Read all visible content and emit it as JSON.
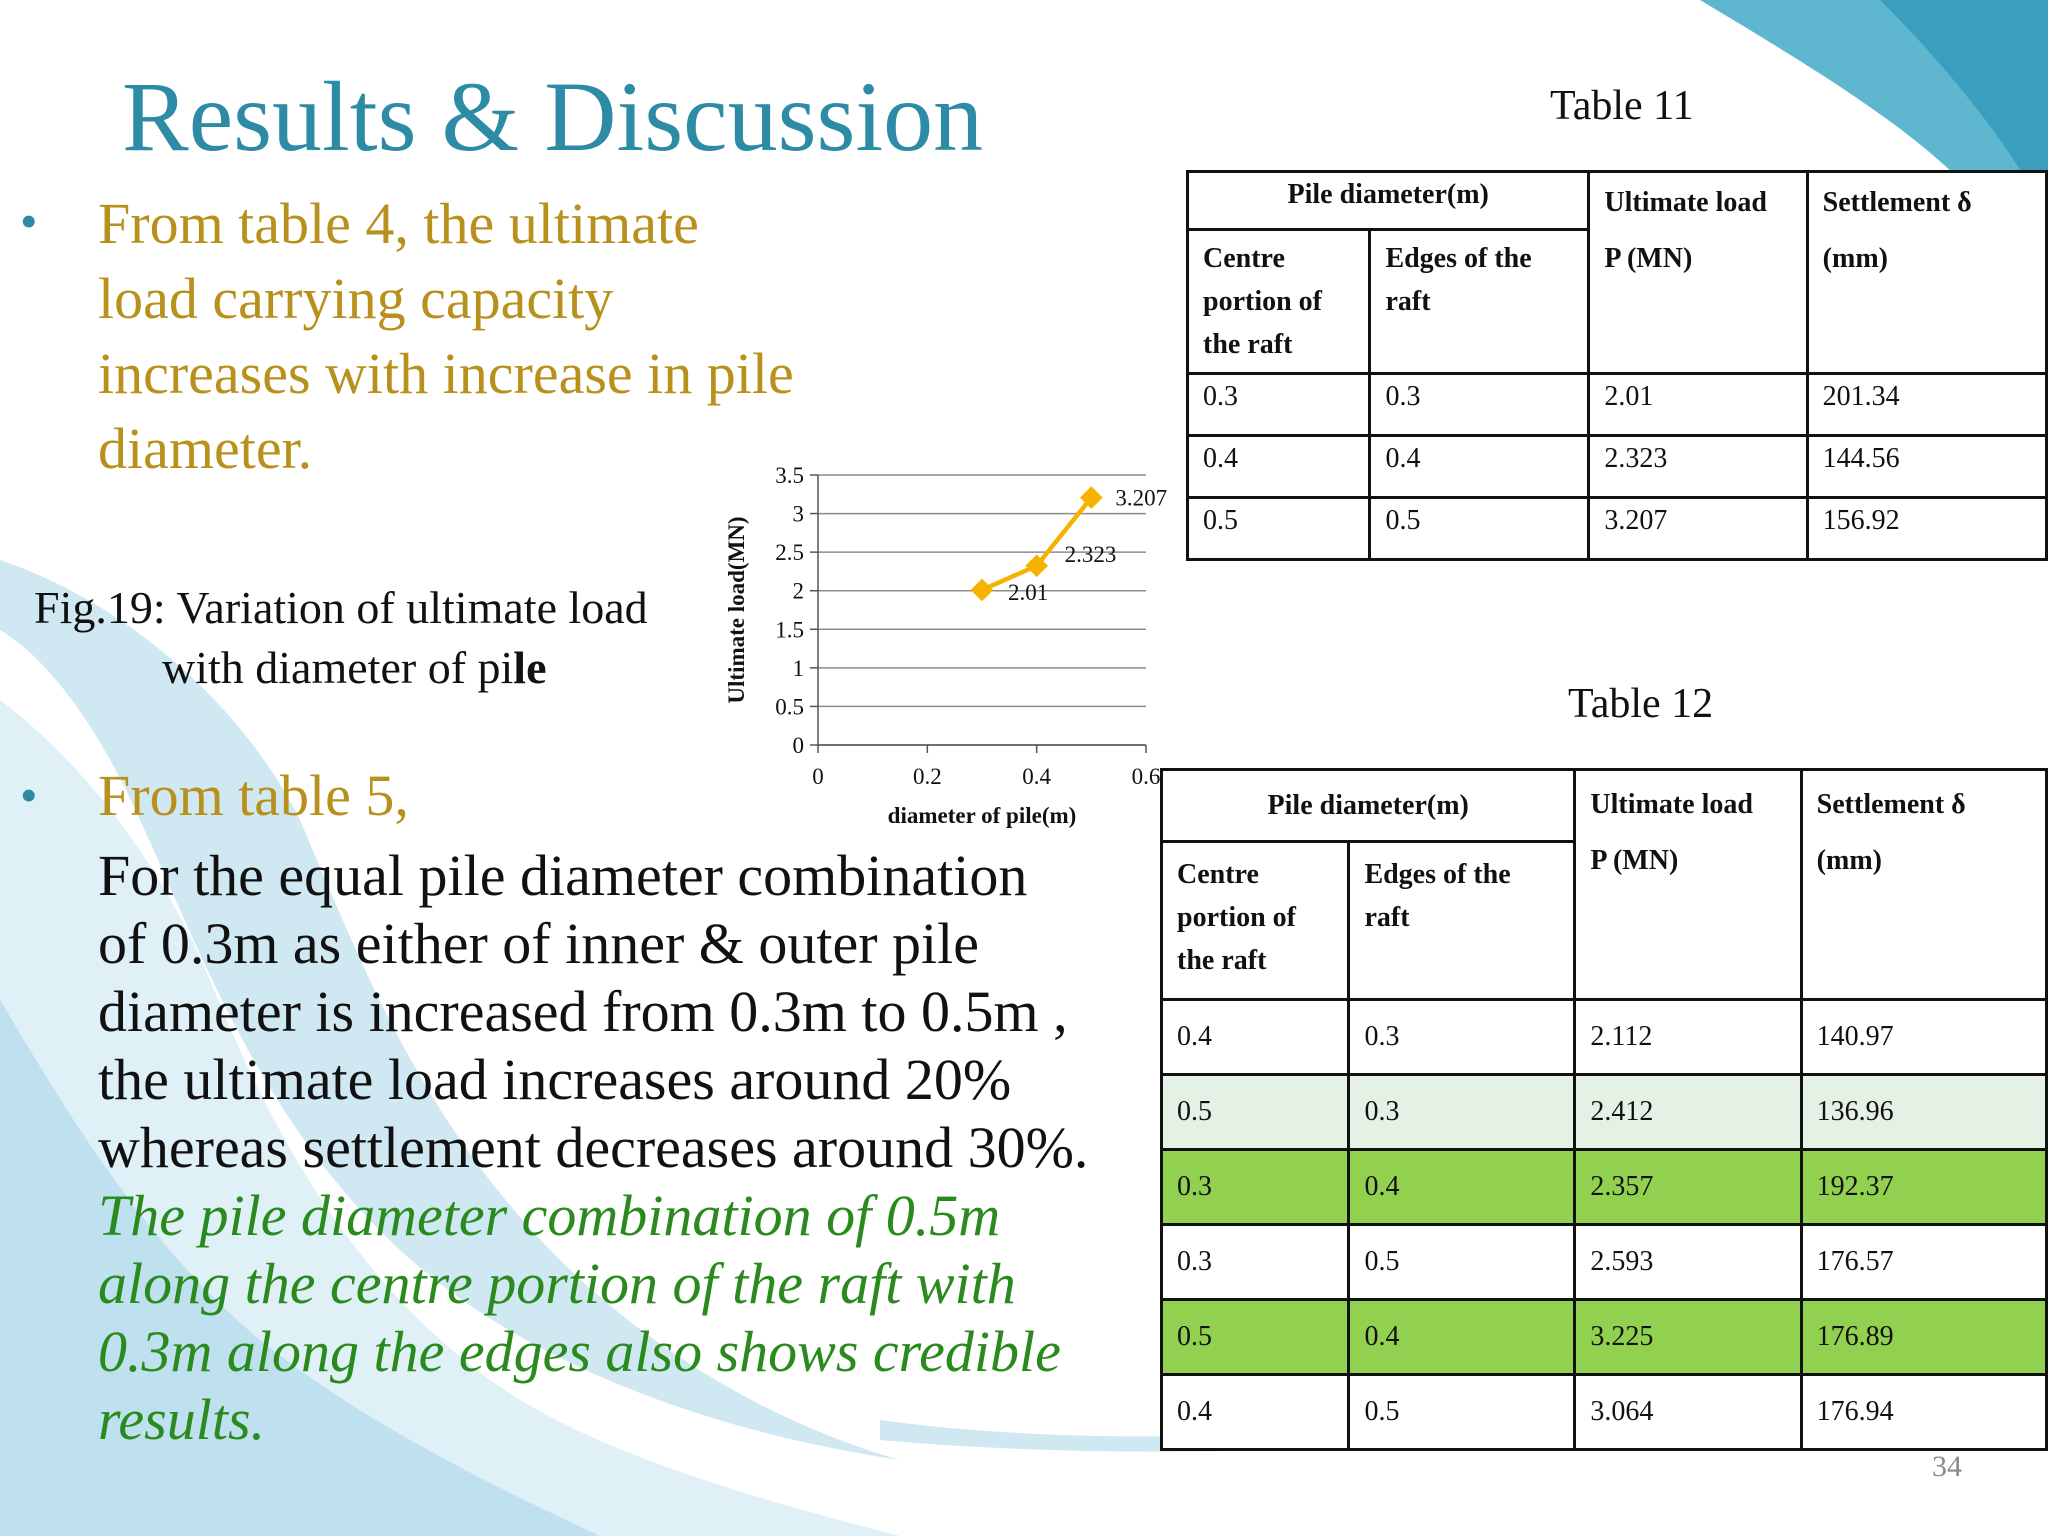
{
  "slide": {
    "title": "Results & Discussion",
    "page_number": "34",
    "colors": {
      "title": "#2e8ba5",
      "gold_text": "#b8901c",
      "green_text": "#2a8a1e",
      "row_highlight": "#92d050",
      "row_light": "#e4f1e4"
    }
  },
  "bullets": {
    "first_lines": [
      "From table 4, the ultimate",
      "load carrying capacity",
      "increases with increase in pile",
      "diameter."
    ],
    "second_heading": "From table 5,",
    "second_lines": [
      "For the equal pile diameter combination",
      "of 0.3m as either of inner & outer pile",
      "diameter is increased from 0.3m to 0.5m ,",
      "the ultimate load increases around 20%",
      "whereas settlement decreases around 30%."
    ],
    "italic_lines": [
      "The pile diameter combination of 0.5m",
      "along the centre portion of the raft with",
      "0.3m along the edges also shows credible",
      "results."
    ]
  },
  "figure": {
    "caption_line1": "Fig.19: Variation of ultimate load",
    "caption_line2_prefix": "with diameter of pi",
    "caption_line2_bold": "le"
  },
  "chart_data": {
    "type": "line",
    "x": [
      0.3,
      0.4,
      0.5
    ],
    "series": [
      {
        "values": [
          2.01,
          2.323,
          3.207
        ],
        "color": "#f5b300"
      }
    ],
    "data_labels": [
      "2.01",
      "2.323",
      "3.207"
    ],
    "xlabel": "diameter of pile(m)",
    "ylabel": "Ultimate load(MN)",
    "xlim": [
      0,
      0.6
    ],
    "ylim": [
      0,
      3.5
    ],
    "x_ticks": [
      "0",
      "0.2",
      "0.4",
      "0.6"
    ],
    "y_ticks": [
      "0",
      "0.5",
      "1",
      "1.5",
      "2",
      "2.5",
      "3",
      "3.5"
    ],
    "grid": "horizontal"
  },
  "table11": {
    "caption": "Table 11",
    "header": {
      "pile_diameter": "Pile diameter(m)",
      "centre": [
        "Centre",
        "portion of",
        "the raft"
      ],
      "edges": [
        "Edges of the",
        "raft"
      ],
      "ultimate": [
        "Ultimate load",
        "P (MN)"
      ],
      "settlement": [
        "Settlement δ",
        "(mm)"
      ]
    },
    "rows": [
      [
        "0.3",
        "0.3",
        "2.01",
        "201.34"
      ],
      [
        "0.4",
        "0.4",
        "2.323",
        "144.56"
      ],
      [
        "0.5",
        "0.5",
        "3.207",
        "156.92"
      ]
    ]
  },
  "table12": {
    "caption": "Table 12",
    "header": {
      "pile_diameter": "Pile diameter(m)",
      "centre": [
        "Centre",
        "portion of",
        "the raft"
      ],
      "edges": [
        "Edges of the",
        "raft"
      ],
      "ultimate": [
        "Ultimate load",
        "P (MN)"
      ],
      "settlement": [
        "Settlement δ",
        "(mm)"
      ]
    },
    "rows": [
      [
        "0.4",
        "0.3",
        "2.112",
        "140.97"
      ],
      [
        "0.5",
        "0.3",
        "2.412",
        "136.96"
      ],
      [
        "0.3",
        "0.4",
        "2.357",
        "192.37"
      ],
      [
        "0.3",
        "0.5",
        "2.593",
        "176.57"
      ],
      [
        "0.5",
        "0.4",
        "3.225",
        "176.89"
      ],
      [
        "0.4",
        "0.5",
        "3.064",
        "176.94"
      ]
    ]
  }
}
